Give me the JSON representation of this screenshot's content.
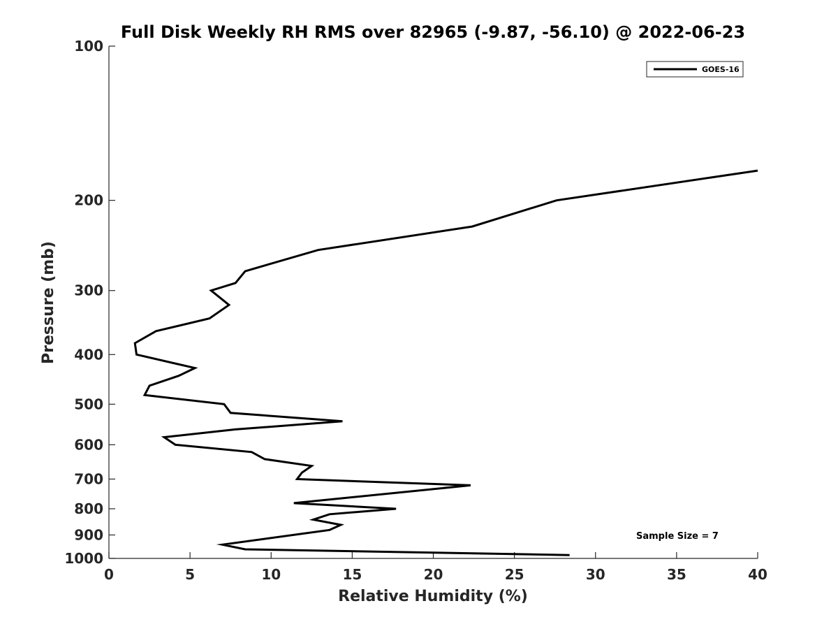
{
  "chart_data": {
    "type": "line",
    "title": "Full Disk Weekly RH RMS over 82965 (-9.87, -56.10) @ 2022-06-23",
    "xlabel": "Relative Humidity (%)",
    "ylabel": "Pressure (mb)",
    "xlim": [
      0,
      40
    ],
    "ylim": [
      1000,
      100
    ],
    "y_scale": "log",
    "x_ticks": [
      0,
      5,
      10,
      15,
      20,
      25,
      30,
      35,
      40
    ],
    "y_ticks": [
      100,
      200,
      300,
      400,
      500,
      600,
      700,
      800,
      900,
      1000
    ],
    "grid": false,
    "legend_position": "top-right",
    "series": [
      {
        "name": "GOES-16",
        "color": "#000000",
        "points": [
          {
            "x": 40.0,
            "y": 175
          },
          {
            "x": 27.6,
            "y": 200
          },
          {
            "x": 22.4,
            "y": 225
          },
          {
            "x": 12.9,
            "y": 250
          },
          {
            "x": 8.4,
            "y": 275
          },
          {
            "x": 7.8,
            "y": 290
          },
          {
            "x": 6.3,
            "y": 300
          },
          {
            "x": 7.4,
            "y": 320
          },
          {
            "x": 6.2,
            "y": 340
          },
          {
            "x": 2.9,
            "y": 360
          },
          {
            "x": 1.6,
            "y": 380
          },
          {
            "x": 1.7,
            "y": 400
          },
          {
            "x": 5.3,
            "y": 425
          },
          {
            "x": 4.3,
            "y": 440
          },
          {
            "x": 2.5,
            "y": 460
          },
          {
            "x": 2.2,
            "y": 480
          },
          {
            "x": 7.1,
            "y": 500
          },
          {
            "x": 7.5,
            "y": 520
          },
          {
            "x": 14.4,
            "y": 540
          },
          {
            "x": 7.8,
            "y": 560
          },
          {
            "x": 3.4,
            "y": 580
          },
          {
            "x": 4.1,
            "y": 600
          },
          {
            "x": 8.8,
            "y": 620
          },
          {
            "x": 9.6,
            "y": 640
          },
          {
            "x": 12.5,
            "y": 660
          },
          {
            "x": 11.9,
            "y": 680
          },
          {
            "x": 11.6,
            "y": 700
          },
          {
            "x": 22.3,
            "y": 720
          },
          {
            "x": 11.4,
            "y": 780
          },
          {
            "x": 17.7,
            "y": 800
          },
          {
            "x": 13.6,
            "y": 820
          },
          {
            "x": 12.6,
            "y": 840
          },
          {
            "x": 14.3,
            "y": 860
          },
          {
            "x": 13.6,
            "y": 880
          },
          {
            "x": 7.0,
            "y": 940
          },
          {
            "x": 8.4,
            "y": 960
          },
          {
            "x": 28.4,
            "y": 985
          }
        ]
      }
    ],
    "annotations": [
      {
        "text": "Sample Size = 7"
      }
    ]
  }
}
